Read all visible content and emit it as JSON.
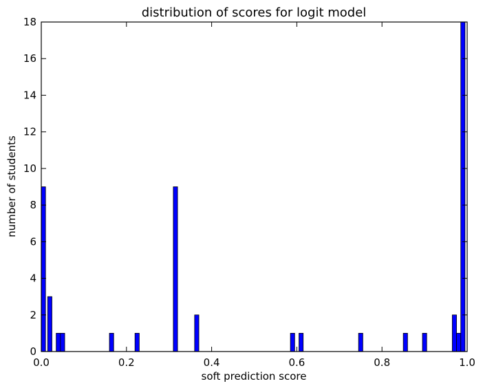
{
  "chart_data": {
    "type": "bar",
    "title": "distribution of scores for logit model",
    "xlabel": "soft prediction score",
    "ylabel": "number of students",
    "xlim": [
      0.0,
      1.0
    ],
    "ylim": [
      0,
      18
    ],
    "xticks": [
      "0.0",
      "0.2",
      "0.4",
      "0.6",
      "0.8",
      "1.0"
    ],
    "yticks": [
      "0",
      "2",
      "4",
      "6",
      "8",
      "10",
      "12",
      "14",
      "16",
      "18"
    ],
    "bin_width": 0.01,
    "grid": false,
    "legend": "none",
    "bar_color": "#0000ff",
    "bins": [
      {
        "x": 0.0,
        "count": 9
      },
      {
        "x": 0.015,
        "count": 3
      },
      {
        "x": 0.035,
        "count": 1
      },
      {
        "x": 0.045,
        "count": 1
      },
      {
        "x": 0.16,
        "count": 1
      },
      {
        "x": 0.22,
        "count": 1
      },
      {
        "x": 0.31,
        "count": 9
      },
      {
        "x": 0.36,
        "count": 2
      },
      {
        "x": 0.585,
        "count": 1
      },
      {
        "x": 0.605,
        "count": 1
      },
      {
        "x": 0.745,
        "count": 1
      },
      {
        "x": 0.85,
        "count": 1
      },
      {
        "x": 0.895,
        "count": 1
      },
      {
        "x": 0.965,
        "count": 2
      },
      {
        "x": 0.975,
        "count": 1
      },
      {
        "x": 0.985,
        "count": 18
      }
    ]
  }
}
